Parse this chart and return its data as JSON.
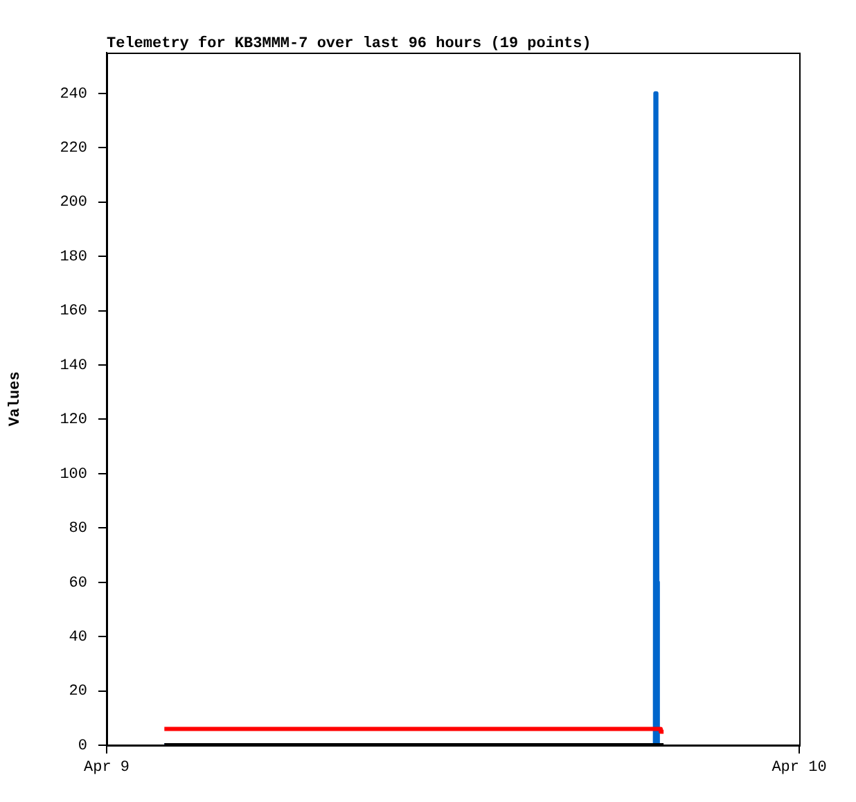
{
  "chart_data": {
    "type": "line",
    "title": "Telemetry for KB3MMM-7 over last 96 hours (19 points)",
    "ylabel": "Values",
    "xlim": [
      "--04-09",
      "--04-10"
    ],
    "xticks": [
      {
        "value": "--04-09",
        "label": "Apr 9"
      },
      {
        "value": "--04-10",
        "label": "Apr 10"
      }
    ],
    "ylim": [
      0,
      255
    ],
    "yticks": [
      0,
      20,
      40,
      60,
      80,
      100,
      120,
      140,
      160,
      180,
      200,
      220,
      240
    ],
    "grid": false,
    "legend": false,
    "marker": "none",
    "line_style": "solid",
    "series": [
      {
        "color": "#ff0000",
        "x": [
          "--04-09T02:00",
          "--04-09T19:12",
          "--04-09T19:12",
          "--04-09T19:18"
        ],
        "values": [
          6,
          6,
          5,
          5
        ]
      },
      {
        "color": "#000000",
        "x": [
          "--04-09T02:00",
          "--04-09T19:18"
        ],
        "values": [
          0,
          0
        ]
      },
      {
        "color": "#0066cc",
        "x": [
          "--04-09T02:00",
          "--04-09T19:00",
          "--04-09T19:01",
          "--04-09T19:03",
          "--04-09T19:05",
          "--04-09T19:06"
        ],
        "values": [
          0,
          0,
          240,
          180,
          60,
          0
        ]
      }
    ]
  }
}
